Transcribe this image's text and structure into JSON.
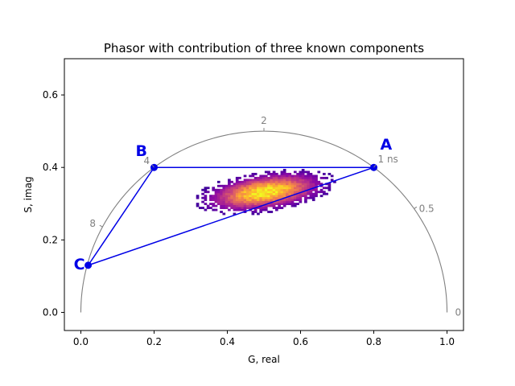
{
  "chart_data": {
    "type": "scatter",
    "title": "Phasor with contribution of three known components",
    "xlabel": "G, real",
    "ylabel": "S, imag",
    "xlim": [
      -0.045,
      1.045
    ],
    "ylim": [
      -0.05,
      0.7
    ],
    "xticks": [
      "0.0",
      "0.2",
      "0.4",
      "0.6",
      "0.8",
      "1.0"
    ],
    "yticks": [
      "0.0",
      "0.2",
      "0.4",
      "0.6"
    ],
    "grid": false,
    "universal_circle": {
      "color": "#808080",
      "lifetime_labels": [
        {
          "label": "0",
          "g": 1.0,
          "s": 0.0
        },
        {
          "label": "0.5",
          "g": 0.91,
          "s": 0.286
        },
        {
          "label": "1 ns",
          "g": 0.8,
          "s": 0.4
        },
        {
          "label": "2",
          "g": 0.5,
          "s": 0.5
        },
        {
          "label": "4",
          "g": 0.2,
          "s": 0.4
        },
        {
          "label": "8",
          "g": 0.059,
          "s": 0.236
        }
      ]
    },
    "components": [
      {
        "label": "A",
        "g": 0.8,
        "s": 0.4
      },
      {
        "label": "B",
        "g": 0.2,
        "s": 0.4
      },
      {
        "label": "C",
        "g": 0.02,
        "s": 0.13
      }
    ],
    "component_color": "#0000e6",
    "histogram": {
      "colormap": "plasma",
      "center": {
        "g": 0.5,
        "s": 0.33
      },
      "g_range": [
        0.25,
        0.77
      ],
      "s_range": [
        0.22,
        0.47
      ]
    }
  }
}
